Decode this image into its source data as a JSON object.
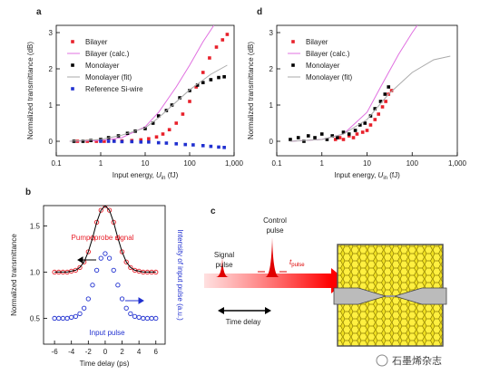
{
  "chart_data": [
    {
      "type": "line",
      "panel": "a",
      "xscale": "log",
      "xlim": [
        0.1,
        1000
      ],
      "xticks": [
        0.1,
        1,
        10,
        100,
        {
          "value": 1000,
          "label": "1,000"
        }
      ],
      "ylim": [
        -0.4,
        3.2
      ],
      "yticks": [
        0,
        1,
        2,
        3
      ],
      "xlabel": {
        "text": "Input energy, ",
        "var": "U",
        "sub": "in",
        "unit": " (fJ)"
      },
      "ylabel": "Normalized transmittance (dB)",
      "legend": "upper left",
      "series": [
        {
          "name": "Bilayer",
          "color": "#e8202a",
          "marker": "square",
          "x": [
            0.3,
            0.5,
            0.8,
            1.2,
            2,
            3,
            5,
            8,
            12,
            18,
            25,
            35,
            50,
            70,
            100,
            140,
            200,
            280,
            400,
            550,
            700
          ],
          "values": [
            0,
            0,
            0,
            0,
            0.01,
            0.01,
            0.02,
            0.04,
            0.07,
            0.12,
            0.2,
            0.32,
            0.5,
            0.75,
            1.1,
            1.5,
            1.9,
            2.3,
            2.6,
            2.8,
            2.95
          ]
        },
        {
          "name": "Bilayer (calc.)",
          "color": "#e070e0",
          "marker": null,
          "x": [
            0.2,
            1,
            3,
            10,
            20,
            50,
            100,
            200,
            350
          ],
          "values": [
            0,
            0.02,
            0.1,
            0.4,
            0.8,
            1.5,
            2.1,
            2.75,
            3.2
          ]
        },
        {
          "name": "Monolayer",
          "color": "#000000",
          "marker": "square",
          "x": [
            0.25,
            0.4,
            0.6,
            1,
            1.5,
            2.5,
            4,
            6,
            10,
            15,
            20,
            30,
            40,
            60,
            100,
            150,
            200,
            300,
            450,
            600
          ],
          "values": [
            0,
            0,
            0.02,
            0.05,
            0.1,
            0.15,
            0.22,
            0.28,
            0.35,
            0.5,
            0.7,
            0.85,
            1.0,
            1.2,
            1.4,
            1.55,
            1.62,
            1.7,
            1.76,
            1.78
          ]
        },
        {
          "name": "Monolayer (fit)",
          "color": "#aaaaaa",
          "marker": null,
          "x": [
            0.2,
            1,
            3,
            10,
            20,
            40,
            100,
            300,
            700
          ],
          "values": [
            0,
            0.05,
            0.17,
            0.37,
            0.65,
            0.98,
            1.42,
            1.85,
            2.1
          ]
        },
        {
          "name": "Reference Si-wire",
          "color": "#2030d0",
          "marker": "square",
          "x": [
            1,
            1.5,
            2,
            3,
            5,
            8,
            12,
            20,
            30,
            50,
            80,
            120,
            200,
            300,
            450,
            600
          ],
          "values": [
            0,
            0,
            0,
            -0.01,
            -0.01,
            -0.02,
            -0.02,
            -0.04,
            -0.05,
            -0.07,
            -0.09,
            -0.1,
            -0.12,
            -0.14,
            -0.16,
            -0.17
          ]
        }
      ]
    },
    {
      "type": "line",
      "panel": "d",
      "xscale": "log",
      "xlim": [
        0.1,
        1000
      ],
      "xticks": [
        0.1,
        1,
        10,
        100,
        {
          "value": 1000,
          "label": "1,000"
        }
      ],
      "ylim": [
        -0.4,
        3.2
      ],
      "yticks": [
        0,
        1,
        2,
        3
      ],
      "xlabel": {
        "text": "Input energy, ",
        "var": "U",
        "sub": "in",
        "unit": " (fJ)"
      },
      "ylabel": "Normalized transmittance (dB)",
      "legend": "upper left",
      "series": [
        {
          "name": "Bilayer",
          "color": "#e8202a",
          "marker": "square",
          "x": [
            2,
            2.5,
            3,
            4,
            5,
            6,
            8,
            10,
            12,
            15,
            18,
            22,
            26,
            30,
            35
          ],
          "values": [
            0.05,
            0.1,
            0.05,
            0.15,
            0.1,
            0.2,
            0.25,
            0.3,
            0.45,
            0.6,
            0.75,
            0.95,
            1.1,
            1.3,
            1.4
          ]
        },
        {
          "name": "Bilayer (calc.)",
          "color": "#e070e0",
          "marker": null,
          "x": [
            0.2,
            1,
            3,
            10,
            20,
            50,
            100,
            130
          ],
          "values": [
            0,
            0.05,
            0.2,
            0.8,
            1.5,
            2.4,
            3.0,
            3.2
          ]
        },
        {
          "name": "Monolayer",
          "color": "#000000",
          "marker": "square",
          "x": [
            0.2,
            0.3,
            0.4,
            0.5,
            0.7,
            1,
            1.3,
            1.7,
            2.2,
            3,
            4,
            5.5,
            7,
            9,
            12,
            15,
            20,
            25,
            30
          ],
          "values": [
            0.05,
            0.1,
            0,
            0.15,
            0.1,
            0.2,
            0.05,
            0.15,
            0.1,
            0.25,
            0.2,
            0.3,
            0.45,
            0.5,
            0.7,
            0.9,
            1.1,
            1.3,
            1.5
          ]
        },
        {
          "name": "Monolayer (fit)",
          "color": "#aaaaaa",
          "marker": null,
          "x": [
            0.2,
            1,
            3,
            10,
            30,
            100,
            300,
            700
          ],
          "values": [
            0,
            0.05,
            0.2,
            0.6,
            1.3,
            1.9,
            2.25,
            2.35
          ]
        }
      ]
    },
    {
      "type": "line",
      "panel": "b",
      "xscale": "linear",
      "xlim": [
        -7.3,
        7.1
      ],
      "xticks": [
        -6,
        -4,
        -2,
        0,
        2,
        4,
        6
      ],
      "ylim": [
        0.22,
        1.72
      ],
      "yticks": [
        0.5,
        {
          "value": 1,
          "label": "1.0"
        },
        1.5
      ],
      "xlabel": {
        "text": "Time delay (ps)"
      },
      "ylabel": "Normalized transmittance",
      "y2label": "Intensity of input pulse (a.u.)",
      "annotations": [
        "Pump–probe signal",
        "Input pulse"
      ],
      "series": [
        {
          "color": "#e8202a",
          "line": "#000000",
          "marker": "circle",
          "x": [
            -6,
            -5.5,
            -5,
            -4.5,
            -4,
            -3.5,
            -3,
            -2.5,
            -2,
            -1.5,
            -1,
            -0.5,
            0,
            0.5,
            1,
            1.5,
            2,
            2.5,
            3,
            3.5,
            4,
            4.5,
            5,
            5.5,
            6
          ],
          "values": [
            1,
            1,
            1,
            1,
            1.01,
            1.02,
            1.05,
            1.11,
            1.22,
            1.37,
            1.54,
            1.67,
            1.72,
            1.67,
            1.54,
            1.37,
            1.22,
            1.11,
            1.05,
            1.02,
            1.01,
            1,
            1,
            1,
            1
          ]
        },
        {
          "color": "#2030d0",
          "marker": "circle",
          "x": [
            -6,
            -5.5,
            -5,
            -4.5,
            -4,
            -3.5,
            -3,
            -2.5,
            -2,
            -1.5,
            -1,
            -0.5,
            0,
            0.5,
            1,
            1.5,
            2,
            2.5,
            3,
            3.5,
            4,
            4.5,
            5,
            5.5,
            6
          ],
          "values": [
            0.5,
            0.5,
            0.5,
            0.5,
            0.51,
            0.52,
            0.55,
            0.61,
            0.71,
            0.86,
            1.02,
            1.15,
            1.2,
            1.15,
            1.02,
            0.86,
            0.71,
            0.61,
            0.55,
            0.52,
            0.51,
            0.5,
            0.5,
            0.5,
            0.5
          ]
        }
      ]
    }
  ],
  "diagram": {
    "panel": "c",
    "signal": "Signal",
    "signal2": "pulse",
    "control": "Control",
    "control2": "pulse",
    "tpulse": {
      "var": "t",
      "sub": "pulse"
    },
    "delay": "Time delay"
  },
  "watermark": "石墨烯杂志"
}
